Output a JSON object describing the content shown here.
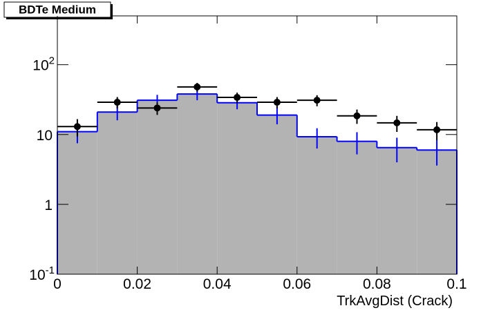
{
  "chart_data": {
    "type": "histogram",
    "title": "BDTe Medium",
    "x_label": "TrkAvgDist (Crack)",
    "bins": [
      0,
      0.01,
      0.02,
      0.03,
      0.04,
      0.05,
      0.06,
      0.07,
      0.08,
      0.09,
      0.1
    ],
    "histogram": {
      "counts": [
        11,
        21,
        31,
        38,
        28.5,
        19,
        9.3,
        8,
        6.5,
        6
      ],
      "errors": [
        3.5,
        5,
        6,
        7,
        5.5,
        5,
        3,
        2.8,
        2.5,
        2.4
      ],
      "color": "#0000ff",
      "fill": "#b3b3b3"
    },
    "points": {
      "values": [
        13,
        29,
        24,
        48,
        34,
        29,
        31,
        18.5,
        14.7,
        11.7
      ],
      "errors": [
        3.6,
        5.4,
        4.9,
        6.9,
        5.8,
        5.4,
        5.6,
        4.3,
        3.8,
        3.4
      ],
      "color": "#000000"
    },
    "xlim": [
      0,
      0.1
    ],
    "xticks": [
      0,
      0.02,
      0.04,
      0.06,
      0.08,
      0.1
    ],
    "ylim": [
      0.1,
      500
    ],
    "log_y": true,
    "yticks": [
      {
        "value": 0.1,
        "label": "10",
        "exponent": "-1"
      },
      1,
      10,
      {
        "value": 100,
        "label": "10",
        "exponent": "2"
      }
    ]
  }
}
